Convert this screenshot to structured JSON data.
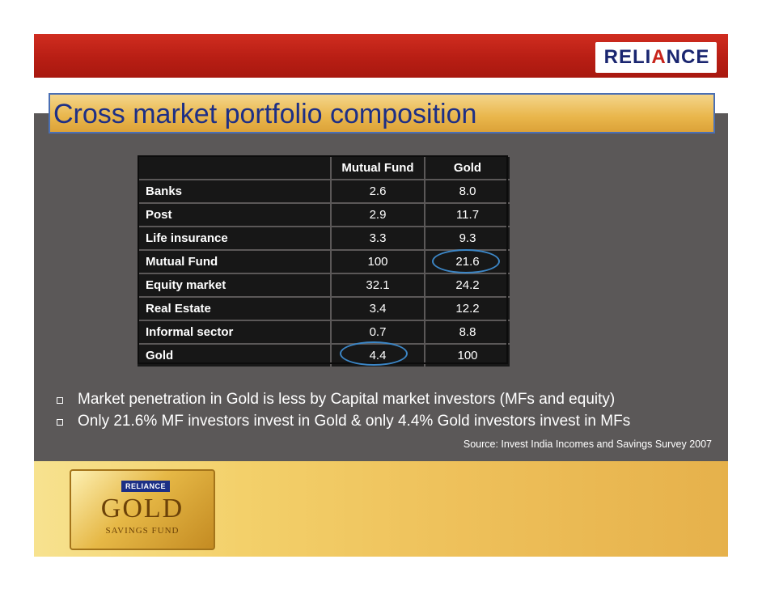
{
  "header": {
    "logo_text_1": "RELI",
    "logo_a": "A",
    "logo_text_2": "NCE"
  },
  "title": "Cross market portfolio composition",
  "table": {
    "columns": [
      "",
      "Mutual Fund",
      "Gold"
    ],
    "rows": [
      {
        "label": "Banks",
        "mutual_fund": "2.6",
        "gold": "8.0"
      },
      {
        "label": "Post",
        "mutual_fund": "2.9",
        "gold": "11.7"
      },
      {
        "label": "Life insurance",
        "mutual_fund": "3.3",
        "gold": "9.3"
      },
      {
        "label": "Mutual Fund",
        "mutual_fund": "100",
        "gold": "21.6"
      },
      {
        "label": "Equity market",
        "mutual_fund": "32.1",
        "gold": "24.2"
      },
      {
        "label": "Real Estate",
        "mutual_fund": "3.4",
        "gold": "12.2"
      },
      {
        "label": "Informal sector",
        "mutual_fund": "0.7",
        "gold": "8.8"
      },
      {
        "label": "Gold",
        "mutual_fund": "4.4",
        "gold": "100"
      }
    ]
  },
  "bullets": [
    "Market penetration in Gold is less by Capital market investors (MFs and equity)",
    "Only 21.6% MF investors invest in Gold & only 4.4% Gold investors invest in MFs"
  ],
  "source": "Source: Invest India Incomes and Savings Survey 2007",
  "badge": {
    "logo": "RELIANCE",
    "name": "GOLD",
    "sub": "SAVINGS FUND"
  },
  "colors": {
    "header_red": "#c8241b",
    "title_blue": "#1d2f86",
    "highlight_ring": "#3c86c6"
  }
}
